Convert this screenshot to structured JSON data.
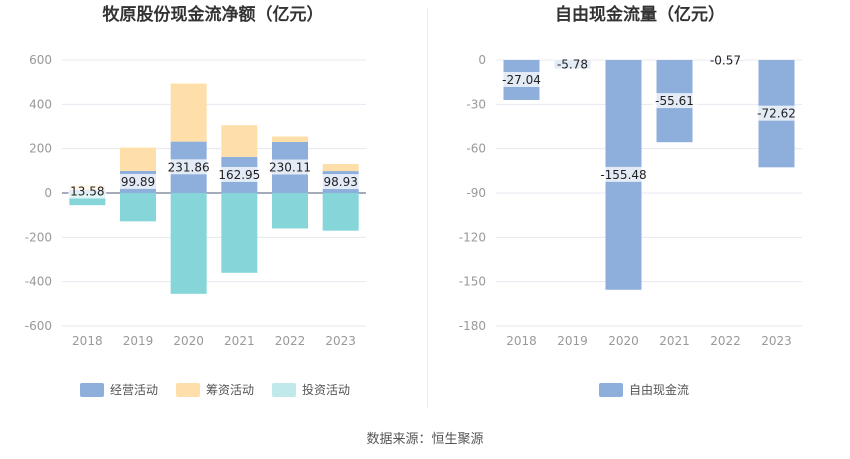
{
  "colors": {
    "operating": "#8eaedb",
    "financing": "#ffdfa9",
    "investing": "#86d6d9",
    "investing_legend": "#bfe9eb",
    "free_cash": "#8eaedb"
  },
  "source_text": "数据来源：恒生聚源",
  "chart_data": [
    {
      "type": "bar",
      "stacked": true,
      "title": "牧原股份现金流净额（亿元）",
      "categories": [
        "2018",
        "2019",
        "2020",
        "2021",
        "2022",
        "2023"
      ],
      "ylim": [
        -600,
        600
      ],
      "yticks": [
        600,
        400,
        200,
        0,
        -200,
        -400,
        -600
      ],
      "grid": true,
      "legend_position": "bottom",
      "series": [
        {
          "name": "经营活动",
          "key": "operating",
          "values": [
            13.58,
            99.89,
            231.86,
            162.95,
            230.11,
            98.93
          ]
        },
        {
          "name": "筹资活动",
          "key": "financing",
          "values": [
            22,
            105,
            262,
            143,
            25,
            32
          ]
        },
        {
          "name": "投资活动",
          "key": "investing",
          "values": [
            -55,
            -128,
            -455,
            -360,
            -160,
            -170
          ]
        }
      ],
      "data_labels": [
        "13.58",
        "99.89",
        "231.86",
        "162.95",
        "230.11",
        "98.93"
      ]
    },
    {
      "type": "bar",
      "title": "自由现金流量（亿元）",
      "categories": [
        "2018",
        "2019",
        "2020",
        "2021",
        "2022",
        "2023"
      ],
      "ylim": [
        -180,
        0
      ],
      "yticks": [
        0,
        -30,
        -60,
        -90,
        -120,
        -150,
        -180
      ],
      "grid": true,
      "legend_position": "bottom",
      "series": [
        {
          "name": "自由现金流",
          "key": "free_cash",
          "values": [
            -27.04,
            -5.78,
            -155.48,
            -55.61,
            -0.57,
            -72.62
          ]
        }
      ],
      "data_labels": [
        "-27.04",
        "-5.78",
        "-155.48",
        "-55.61",
        "-0.57",
        "-72.62"
      ]
    }
  ]
}
